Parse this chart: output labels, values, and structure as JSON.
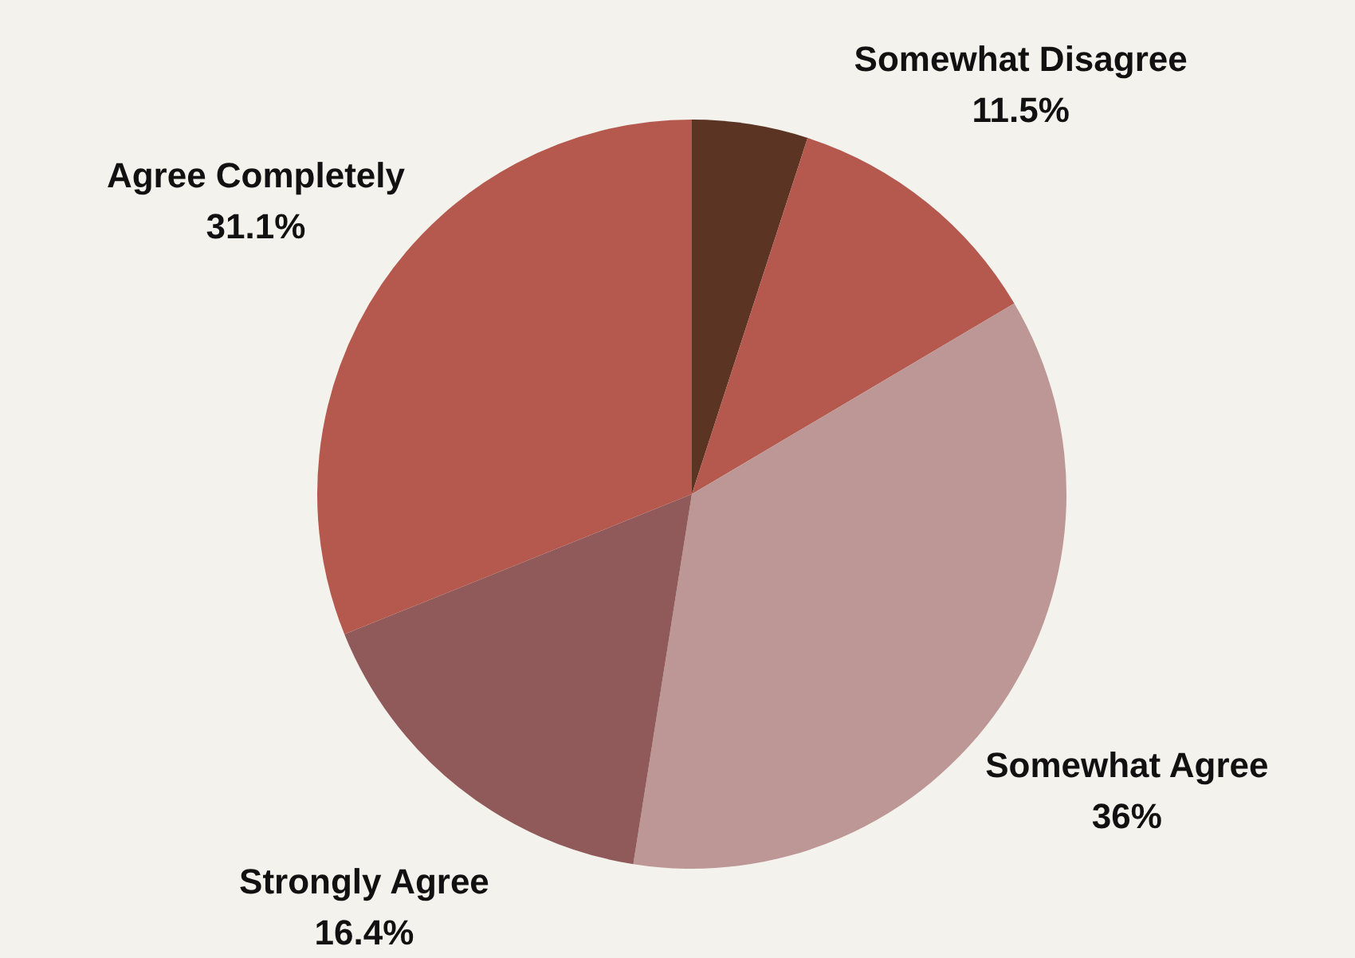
{
  "chart_data": {
    "type": "pie",
    "categories": [
      null,
      "Somewhat Disagree",
      "Somewhat Agree",
      "Strongly Agree",
      "Agree Completely"
    ],
    "values": [
      5,
      11.5,
      36,
      16.4,
      31.1
    ],
    "value_labels": [
      null,
      "11.5%",
      "36%",
      "16.4%",
      "31.1%"
    ],
    "colors": [
      "#5c3424",
      "#b5594e",
      "#bd9795",
      "#8f5a59",
      "#b5594e"
    ]
  }
}
